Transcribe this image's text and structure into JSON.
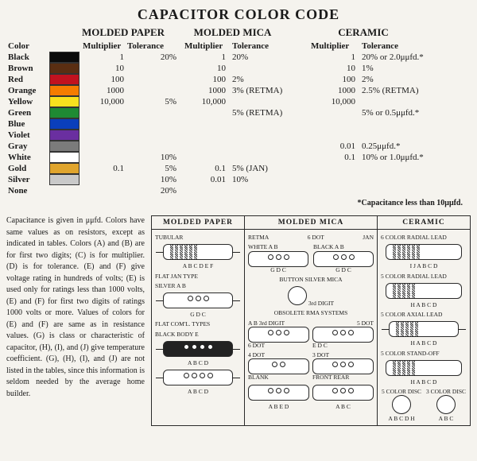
{
  "title": "CAPACITOR COLOR CODE",
  "groups": {
    "g1": "MOLDED PAPER",
    "g2": "MOLDED MICA",
    "g3": "CERAMIC"
  },
  "subheads": {
    "color": "Color",
    "mult": "Multiplier",
    "tol": "Tolerance"
  },
  "rows": [
    {
      "name": "Black",
      "swatch": "#0b0b0b",
      "m1": "1",
      "t1": "20%",
      "m2": "1",
      "t2": "20%",
      "m3": "1",
      "t3": "20% or 2.0μμfd.*"
    },
    {
      "name": "Brown",
      "swatch": "#5a2e12",
      "m1": "10",
      "t1": "",
      "m2": "10",
      "t2": "",
      "m3": "10",
      "t3": "1%"
    },
    {
      "name": "Red",
      "swatch": "#c1121f",
      "m1": "100",
      "t1": "",
      "m2": "100",
      "t2": "2%",
      "m3": "100",
      "t3": "2%"
    },
    {
      "name": "Orange",
      "swatch": "#f57c00",
      "m1": "1000",
      "t1": "",
      "m2": "1000",
      "t2": "3% (RETMA)",
      "m3": "1000",
      "t3": "2.5% (RETMA)"
    },
    {
      "name": "Yellow",
      "swatch": "#f9e11e",
      "m1": "10,000",
      "t1": "5%",
      "m2": "10,000",
      "t2": "",
      "m3": "10,000",
      "t3": ""
    },
    {
      "name": "Green",
      "swatch": "#1f8a33",
      "m1": "",
      "t1": "",
      "m2": "",
      "t2": "5% (RETMA)",
      "m3": "",
      "t3": "5% or 0.5μμfd.*"
    },
    {
      "name": "Blue",
      "swatch": "#0a3fbb",
      "m1": "",
      "t1": "",
      "m2": "",
      "t2": "",
      "m3": "",
      "t3": ""
    },
    {
      "name": "Violet",
      "swatch": "#6a2fa0",
      "m1": "",
      "t1": "",
      "m2": "",
      "t2": "",
      "m3": "",
      "t3": ""
    },
    {
      "name": "Gray",
      "swatch": "#7b7b7b",
      "m1": "",
      "t1": "",
      "m2": "",
      "t2": "",
      "m3": "0.01",
      "t3": "0.25μμfd.*"
    },
    {
      "name": "White",
      "swatch": "#ffffff",
      "m1": "",
      "t1": "10%",
      "m2": "",
      "t2": "",
      "m3": "0.1",
      "t3": "10% or 1.0μμfd.*"
    },
    {
      "name": "Gold",
      "swatch": "#e0a52e",
      "m1": "0.1",
      "t1": "5%",
      "m2": "0.1",
      "t2": "5% (JAN)",
      "m3": "",
      "t3": ""
    },
    {
      "name": "Silver",
      "swatch": "#c9c9c9",
      "m1": "",
      "t1": "10%",
      "m2": "0.01",
      "t2": "10%",
      "m3": "",
      "t3": ""
    },
    {
      "name": "None",
      "swatch": "",
      "m1": "",
      "t1": "20%",
      "m2": "",
      "t2": "",
      "m3": "",
      "t3": ""
    }
  ],
  "footnote": "*Capacitance less than 10μμfd.",
  "explain": "Capacitance is given in μμfd. Colors have same values as on resistors, except as indicated in tables. Colors (A) and (B) are for first two digits; (C) is for multiplier. (D) is for tolerance. (E) and (F) give voltage rating in hundreds of volts; (E) is used only for ratings less than 1000 volts, (E) and (F) for first two digits of ratings 1000 volts or more. Values of colors for (E) and (F) are same as in resistance values. (G) is class or characteristic of capacitor, (H), (I), and (J) give temperature coefficient. (G), (H), (I), and (J) are not listed in the tables, since this information is seldom needed by the average home builder.",
  "diagrams": {
    "col1": {
      "title": "MOLDED  PAPER",
      "s1": "TUBULAR",
      "s1b": "A B C D E F",
      "s2": "FLAT  JAN  TYPE",
      "s2a": "SILVER  A  B",
      "s2b": "G  D  C",
      "s3": "FLAT COM'L. TYPES",
      "s3a": "BLACK BODY  E",
      "s3b": "A B C D",
      "s3c": "A  B  C  D"
    },
    "col2": {
      "title": "MOLDED  MICA",
      "s1a": "RETMA",
      "s1b": "6 DOT",
      "s1c": "JAN",
      "s2a": "WHITE  A  B",
      "s2b": "BLACK  A  B",
      "s2c": "G  D  C",
      "s3": "BUTTON SILVER MICA",
      "s3b": "3rd DIGIT",
      "s4": "OBSOLETE  RMA  SYSTEMS",
      "s4a": "A B 3rd DIGIT",
      "s4b": "5 DOT",
      "s4c": "6 DOT",
      "s4d": "E D C",
      "s4e": "4 DOT",
      "s4f": "BLANK",
      "s4g": "3 DOT",
      "s4h": "FRONT REAR",
      "s4i": "A B C",
      "s4j": "A B  E D",
      "s4k": "A  B  C"
    },
    "col3": {
      "title": "CERAMIC",
      "s1": "6 COLOR RADIAL LEAD",
      "s1b": "I J A B C D",
      "s2": "5 COLOR RADIAL LEAD",
      "s2b": "H A B C D",
      "s3": "5 COLOR AXIAL LEAD",
      "s3b": "H A B C D",
      "s4": "5 COLOR STAND-OFF",
      "s4b": "H A B C D",
      "s5": "5 COLOR DISC",
      "s6": "3 COLOR DISC",
      "s5b": "A B C D H",
      "s6b": "A B C"
    }
  }
}
